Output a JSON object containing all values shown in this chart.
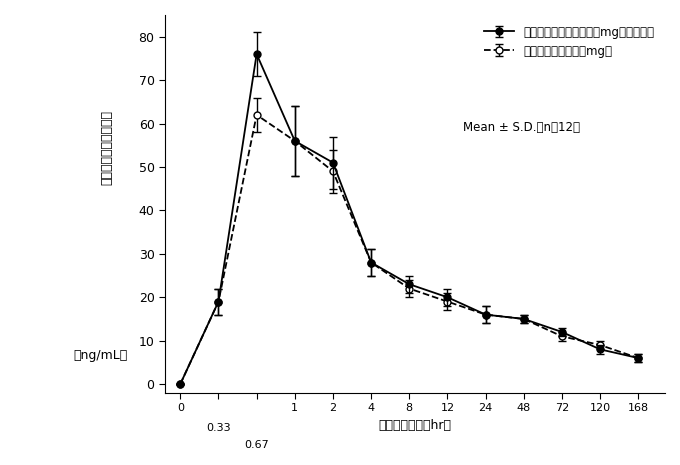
{
  "display_pos": [
    0,
    1,
    2,
    3,
    4,
    5,
    6,
    7,
    8,
    9,
    10,
    11,
    12
  ],
  "xtick_labels": [
    "0",
    "0.33",
    "0.67",
    "1",
    "2",
    "4",
    "8",
    "12",
    "24",
    "48",
    "72",
    "120",
    "168"
  ],
  "solid_y": [
    0,
    19,
    76,
    56,
    51,
    28,
    23,
    20,
    16,
    15,
    12,
    8,
    6
  ],
  "solid_yerr": [
    0,
    3,
    5,
    8,
    6,
    3,
    2,
    2,
    2,
    1,
    1,
    1,
    1
  ],
  "dashed_y": [
    0,
    19,
    62,
    56,
    49,
    28,
    22,
    19,
    16,
    15,
    11,
    9,
    6
  ],
  "dashed_yerr": [
    0,
    3,
    4,
    8,
    5,
    3,
    2,
    2,
    2,
    1,
    1,
    1,
    1
  ],
  "ytick_positions": [
    0,
    10,
    20,
    30,
    40,
    50,
    60,
    70,
    80
  ],
  "ytick_labels": [
    "0",
    "10",
    "20",
    "30",
    "40",
    "50",
    "60",
    "70",
    "80"
  ],
  "ylabel": "血漿中活性代謝物濃度",
  "ylabel_unit": "（ng/mL）",
  "xlabel": "投与後の時間（hr）",
  "legend_solid": "ロフラゼプ酸エチル錢１mg「サワイ」",
  "legend_dashed": "標準製剤（錢剤、１mg）",
  "legend_note": "Mean ± S.D.（n＝12）",
  "ylim": [
    -2,
    85
  ],
  "xlim": [
    -0.4,
    12.7
  ],
  "background": "#ffffff"
}
